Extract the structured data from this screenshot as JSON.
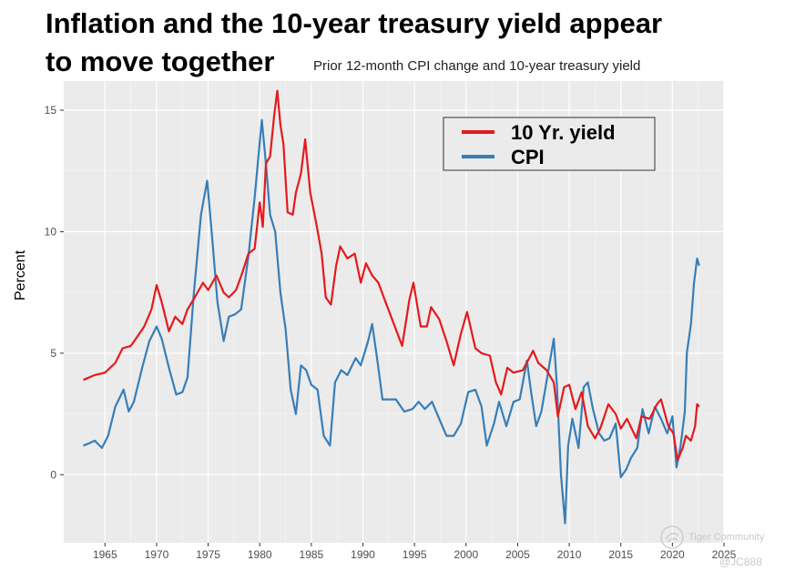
{
  "header": {
    "title_line1": "Inflation and the 10-year treasury yield appear",
    "title_line2": "to move together",
    "subtitle": "Prior 12-month CPI change and 10-year treasury yield"
  },
  "watermark": {
    "brand": "Tiger Community",
    "handle": "@JC888"
  },
  "chart_data": {
    "type": "line",
    "title": "Inflation and the 10-year treasury yield appear to move together",
    "subtitle": "Prior 12-month CPI change and 10-year treasury yield",
    "xlabel": "",
    "ylabel": "Percent",
    "xlim": [
      1961,
      2025
    ],
    "ylim": [
      -2.8,
      16.2
    ],
    "x_ticks": [
      1965,
      1970,
      1975,
      1980,
      1985,
      1990,
      1995,
      2000,
      2005,
      2010,
      2015,
      2020,
      2025
    ],
    "y_ticks": [
      0,
      5,
      10,
      15
    ],
    "grid": true,
    "background": "#ebebeb",
    "legend_position": "top-right",
    "series": [
      {
        "name": "10 Yr. yield",
        "color": "#e41a1c",
        "points": [
          [
            1962.9,
            3.9
          ],
          [
            1964.0,
            4.1
          ],
          [
            1965.0,
            4.2
          ],
          [
            1966.0,
            4.6
          ],
          [
            1966.7,
            5.2
          ],
          [
            1967.5,
            5.3
          ],
          [
            1968.0,
            5.6
          ],
          [
            1968.8,
            6.1
          ],
          [
            1969.5,
            6.8
          ],
          [
            1970.0,
            7.8
          ],
          [
            1970.5,
            7.1
          ],
          [
            1971.2,
            5.9
          ],
          [
            1971.8,
            6.5
          ],
          [
            1972.5,
            6.2
          ],
          [
            1973.0,
            6.8
          ],
          [
            1973.7,
            7.3
          ],
          [
            1974.5,
            7.9
          ],
          [
            1975.0,
            7.6
          ],
          [
            1975.8,
            8.2
          ],
          [
            1976.5,
            7.5
          ],
          [
            1977.0,
            7.3
          ],
          [
            1977.7,
            7.6
          ],
          [
            1978.3,
            8.3
          ],
          [
            1978.9,
            9.1
          ],
          [
            1979.5,
            9.3
          ],
          [
            1980.0,
            11.2
          ],
          [
            1980.3,
            10.2
          ],
          [
            1980.6,
            12.8
          ],
          [
            1981.0,
            13.1
          ],
          [
            1981.4,
            14.8
          ],
          [
            1981.7,
            15.8
          ],
          [
            1982.0,
            14.4
          ],
          [
            1982.3,
            13.6
          ],
          [
            1982.7,
            10.8
          ],
          [
            1983.2,
            10.7
          ],
          [
            1983.5,
            11.6
          ],
          [
            1984.0,
            12.4
          ],
          [
            1984.4,
            13.8
          ],
          [
            1984.9,
            11.6
          ],
          [
            1985.5,
            10.3
          ],
          [
            1986.0,
            9.1
          ],
          [
            1986.4,
            7.3
          ],
          [
            1986.9,
            7.0
          ],
          [
            1987.4,
            8.6
          ],
          [
            1987.8,
            9.4
          ],
          [
            1988.5,
            8.9
          ],
          [
            1989.2,
            9.1
          ],
          [
            1989.8,
            7.9
          ],
          [
            1990.3,
            8.7
          ],
          [
            1990.9,
            8.2
          ],
          [
            1991.5,
            7.9
          ],
          [
            1992.2,
            7.1
          ],
          [
            1993.0,
            6.2
          ],
          [
            1993.8,
            5.3
          ],
          [
            1994.5,
            7.2
          ],
          [
            1994.9,
            7.9
          ],
          [
            1995.6,
            6.1
          ],
          [
            1996.2,
            6.1
          ],
          [
            1996.6,
            6.9
          ],
          [
            1997.4,
            6.4
          ],
          [
            1998.1,
            5.5
          ],
          [
            1998.8,
            4.5
          ],
          [
            1999.5,
            5.8
          ],
          [
            2000.1,
            6.7
          ],
          [
            2000.9,
            5.2
          ],
          [
            2001.5,
            5.0
          ],
          [
            2002.3,
            4.9
          ],
          [
            2002.9,
            3.8
          ],
          [
            2003.4,
            3.3
          ],
          [
            2004.0,
            4.4
          ],
          [
            2004.6,
            4.2
          ],
          [
            2005.5,
            4.3
          ],
          [
            2006.5,
            5.1
          ],
          [
            2007.0,
            4.6
          ],
          [
            2007.8,
            4.3
          ],
          [
            2008.5,
            3.8
          ],
          [
            2008.9,
            2.4
          ],
          [
            2009.5,
            3.6
          ],
          [
            2010.0,
            3.7
          ],
          [
            2010.6,
            2.7
          ],
          [
            2011.2,
            3.4
          ],
          [
            2011.8,
            2.0
          ],
          [
            2012.5,
            1.5
          ],
          [
            2013.0,
            1.9
          ],
          [
            2013.8,
            2.9
          ],
          [
            2014.5,
            2.5
          ],
          [
            2015.0,
            1.9
          ],
          [
            2015.6,
            2.3
          ],
          [
            2016.5,
            1.5
          ],
          [
            2017.0,
            2.4
          ],
          [
            2017.8,
            2.3
          ],
          [
            2018.5,
            2.9
          ],
          [
            2018.9,
            3.1
          ],
          [
            2019.6,
            2.0
          ],
          [
            2020.1,
            1.7
          ],
          [
            2020.5,
            0.6
          ],
          [
            2021.0,
            1.1
          ],
          [
            2021.3,
            1.6
          ],
          [
            2021.8,
            1.4
          ],
          [
            2022.2,
            2.0
          ],
          [
            2022.4,
            2.9
          ],
          [
            2022.6,
            2.8
          ]
        ]
      },
      {
        "name": "CPI",
        "color": "#377eb8",
        "points": [
          [
            1962.9,
            1.2
          ],
          [
            1963.5,
            1.3
          ],
          [
            1964.0,
            1.4
          ],
          [
            1964.7,
            1.1
          ],
          [
            1965.3,
            1.6
          ],
          [
            1966.0,
            2.8
          ],
          [
            1966.8,
            3.5
          ],
          [
            1967.3,
            2.6
          ],
          [
            1967.8,
            3.0
          ],
          [
            1968.6,
            4.4
          ],
          [
            1969.3,
            5.5
          ],
          [
            1970.0,
            6.1
          ],
          [
            1970.5,
            5.6
          ],
          [
            1971.2,
            4.4
          ],
          [
            1971.9,
            3.3
          ],
          [
            1972.5,
            3.4
          ],
          [
            1973.0,
            4.0
          ],
          [
            1973.6,
            7.4
          ],
          [
            1974.3,
            10.7
          ],
          [
            1974.9,
            12.1
          ],
          [
            1975.4,
            9.7
          ],
          [
            1975.9,
            7.1
          ],
          [
            1976.5,
            5.5
          ],
          [
            1977.0,
            6.5
          ],
          [
            1977.6,
            6.6
          ],
          [
            1978.2,
            6.8
          ],
          [
            1978.9,
            9.0
          ],
          [
            1979.5,
            11.4
          ],
          [
            1980.2,
            14.6
          ],
          [
            1980.6,
            12.8
          ],
          [
            1981.0,
            10.7
          ],
          [
            1981.5,
            10.0
          ],
          [
            1982.0,
            7.5
          ],
          [
            1982.5,
            6.0
          ],
          [
            1983.0,
            3.5
          ],
          [
            1983.5,
            2.5
          ],
          [
            1984.0,
            4.5
          ],
          [
            1984.5,
            4.3
          ],
          [
            1985.0,
            3.7
          ],
          [
            1985.6,
            3.5
          ],
          [
            1986.2,
            1.6
          ],
          [
            1986.8,
            1.2
          ],
          [
            1987.3,
            3.8
          ],
          [
            1987.9,
            4.3
          ],
          [
            1988.5,
            4.1
          ],
          [
            1989.3,
            4.8
          ],
          [
            1989.8,
            4.5
          ],
          [
            1990.5,
            5.5
          ],
          [
            1990.9,
            6.2
          ],
          [
            1991.4,
            4.7
          ],
          [
            1991.9,
            3.1
          ],
          [
            1992.6,
            3.1
          ],
          [
            1993.2,
            3.1
          ],
          [
            1994.0,
            2.6
          ],
          [
            1994.8,
            2.7
          ],
          [
            1995.4,
            3.0
          ],
          [
            1996.0,
            2.7
          ],
          [
            1996.7,
            3.0
          ],
          [
            1997.4,
            2.3
          ],
          [
            1998.1,
            1.6
          ],
          [
            1998.8,
            1.6
          ],
          [
            1999.5,
            2.1
          ],
          [
            2000.2,
            3.4
          ],
          [
            2000.9,
            3.5
          ],
          [
            2001.5,
            2.8
          ],
          [
            2002.0,
            1.2
          ],
          [
            2002.7,
            2.1
          ],
          [
            2003.2,
            3.0
          ],
          [
            2003.9,
            2.0
          ],
          [
            2004.6,
            3.0
          ],
          [
            2005.2,
            3.1
          ],
          [
            2005.9,
            4.7
          ],
          [
            2006.3,
            3.4
          ],
          [
            2006.8,
            2.0
          ],
          [
            2007.3,
            2.6
          ],
          [
            2007.9,
            4.1
          ],
          [
            2008.5,
            5.6
          ],
          [
            2008.8,
            3.7
          ],
          [
            2009.2,
            0.0
          ],
          [
            2009.6,
            -2.0
          ],
          [
            2009.9,
            1.2
          ],
          [
            2010.3,
            2.3
          ],
          [
            2010.9,
            1.1
          ],
          [
            2011.4,
            3.6
          ],
          [
            2011.8,
            3.8
          ],
          [
            2012.3,
            2.7
          ],
          [
            2012.9,
            1.7
          ],
          [
            2013.4,
            1.4
          ],
          [
            2013.9,
            1.5
          ],
          [
            2014.5,
            2.1
          ],
          [
            2015.0,
            -0.1
          ],
          [
            2015.5,
            0.2
          ],
          [
            2016.0,
            0.7
          ],
          [
            2016.6,
            1.1
          ],
          [
            2017.1,
            2.7
          ],
          [
            2017.7,
            1.7
          ],
          [
            2018.3,
            2.8
          ],
          [
            2018.9,
            2.3
          ],
          [
            2019.5,
            1.7
          ],
          [
            2020.0,
            2.4
          ],
          [
            2020.4,
            0.3
          ],
          [
            2020.8,
            1.2
          ],
          [
            2021.2,
            2.6
          ],
          [
            2021.4,
            5.0
          ],
          [
            2021.8,
            6.2
          ],
          [
            2022.1,
            7.9
          ],
          [
            2022.4,
            8.9
          ],
          [
            2022.6,
            8.6
          ]
        ]
      }
    ]
  }
}
